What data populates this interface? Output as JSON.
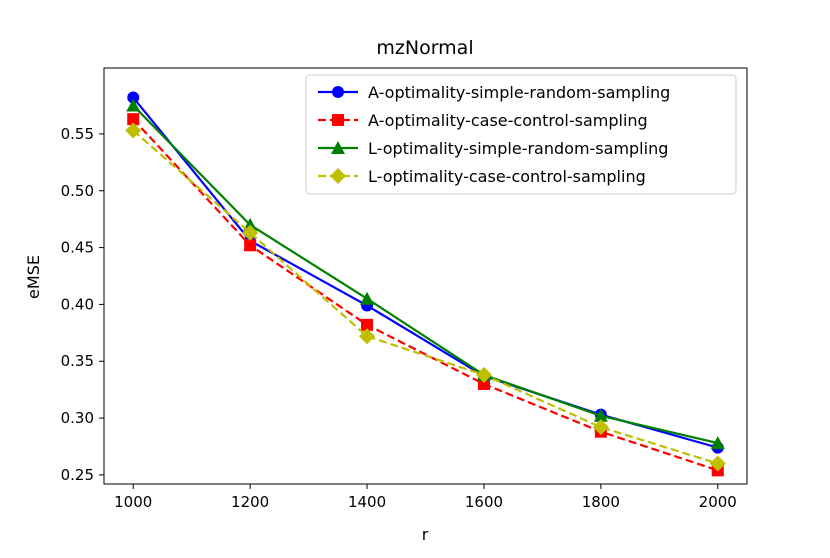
{
  "chart_data": {
    "type": "line",
    "title": "mzNormal",
    "xlabel": "r",
    "ylabel": "eMSE",
    "x": [
      1000,
      1200,
      1400,
      1600,
      1800,
      2000
    ],
    "xlim": [
      950,
      2050
    ],
    "ylim": [
      0.242,
      0.608
    ],
    "xticks": [
      1000,
      1200,
      1400,
      1600,
      1800,
      2000
    ],
    "yticks": [
      0.25,
      0.3,
      0.35,
      0.4,
      0.45,
      0.5,
      0.55
    ],
    "ytick_labels": [
      "0.25",
      "0.30",
      "0.35",
      "0.40",
      "0.45",
      "0.50",
      "0.55"
    ],
    "grid": false,
    "legend_position": "top-right",
    "series": [
      {
        "name": "A-optimality-simple-random-sampling",
        "color": "#0000ff",
        "dash": "solid",
        "marker": "circle",
        "values": [
          0.582,
          0.456,
          0.399,
          0.337,
          0.303,
          0.274
        ]
      },
      {
        "name": "A-optimality-case-control-sampling",
        "color": "#ff0000",
        "dash": "dashed",
        "marker": "square",
        "values": [
          0.563,
          0.452,
          0.382,
          0.33,
          0.288,
          0.254
        ]
      },
      {
        "name": "L-optimality-simple-random-sampling",
        "color": "#008000",
        "dash": "solid",
        "marker": "triangle",
        "values": [
          0.575,
          0.47,
          0.405,
          0.338,
          0.302,
          0.278
        ]
      },
      {
        "name": "L-optimality-case-control-sampling",
        "color": "#bfbf00",
        "dash": "dashed",
        "marker": "diamond",
        "values": [
          0.553,
          0.463,
          0.372,
          0.338,
          0.292,
          0.26
        ]
      }
    ]
  }
}
